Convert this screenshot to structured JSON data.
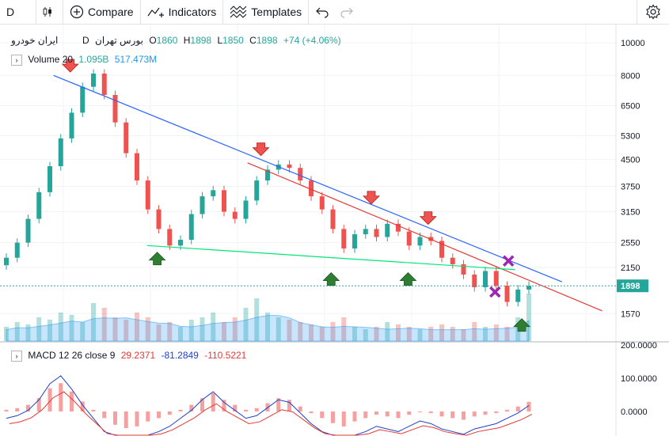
{
  "toolbar": {
    "interval": "D",
    "compare": "Compare",
    "indicators": "Indicators",
    "templates": "Templates"
  },
  "symbol": {
    "name": "ایران خودرو",
    "exchange": "بورس تهران",
    "interval": "D",
    "open_label": "O",
    "open": "1860",
    "high_label": "H",
    "high": "1898",
    "low_label": "L",
    "low": "1850",
    "close_label": "C",
    "close": "1898",
    "change": "+74 (+4.06%)"
  },
  "volume": {
    "label": "Volume 20",
    "value": "1.095B",
    "ma": "517.473M"
  },
  "macd": {
    "label": "MACD 12 26 close 9",
    "hist": "29.2371",
    "macd": "-81.2849",
    "signal": "-110.5221"
  },
  "colors": {
    "up": "#26a69a",
    "down": "#ef5350",
    "blue": "#2962ff",
    "red": "#e53935",
    "green": "#00e676",
    "purple": "#9c27b0",
    "grid": "#e0e3eb"
  },
  "chart_data": [
    {
      "type": "candlestick",
      "scale": "log",
      "y_ticks": [
        10000,
        8000,
        6500,
        5300,
        4500,
        3750,
        3150,
        2550,
        2150,
        1570
      ],
      "y_tick_labels": [
        "10000",
        "8000",
        "6500",
        "5300",
        "4500",
        "3750",
        "3150",
        "2550",
        "2150",
        "1570"
      ],
      "last_price": 1898,
      "last_price_label": "1898",
      "series": [
        {
          "values": [
            2300,
            2550,
            3000,
            3600,
            4300,
            5200,
            6200,
            7400,
            8100,
            7000,
            5800,
            4700,
            3900,
            3200,
            2800,
            2500,
            2600,
            3100,
            3500,
            3650,
            3150,
            3000,
            3400,
            3900,
            4200,
            4350,
            4250,
            3900,
            3500,
            3200,
            2800,
            2450,
            2700,
            2800,
            2650,
            2900,
            2750,
            2500,
            2650,
            2580,
            2300,
            2200,
            2050,
            1880,
            2100,
            1900,
            1700,
            1850,
            1898
          ]
        }
      ],
      "trendlines": [
        {
          "color": "blue",
          "from": [
            0.08,
            8000
          ],
          "to": [
            0.84,
            1950
          ]
        },
        {
          "color": "red",
          "from": [
            0.37,
            4400
          ],
          "to": [
            0.9,
            1600
          ]
        },
        {
          "color": "green",
          "from": [
            0.22,
            2500
          ],
          "to": [
            0.77,
            2120
          ]
        }
      ],
      "markers": [
        {
          "kind": "down-arrow",
          "x": 0.105,
          "value": 8500
        },
        {
          "kind": "down-arrow",
          "x": 0.39,
          "value": 4800
        },
        {
          "kind": "down-arrow",
          "x": 0.555,
          "value": 3450
        },
        {
          "kind": "down-arrow",
          "x": 0.64,
          "value": 3000
        },
        {
          "kind": "up-arrow",
          "x": 0.235,
          "value": 2300
        },
        {
          "kind": "up-arrow",
          "x": 0.495,
          "value": 2000
        },
        {
          "kind": "up-arrow",
          "x": 0.61,
          "value": 2000
        },
        {
          "kind": "up-arrow",
          "x": 0.78,
          "value": 1460
        },
        {
          "kind": "x-mark",
          "x": 0.76,
          "value": 2250
        },
        {
          "kind": "x-mark",
          "x": 0.74,
          "value": 1820
        }
      ]
    },
    {
      "type": "bar",
      "name": "Volume 20",
      "values": [
        0.3,
        0.4,
        0.35,
        0.5,
        0.45,
        0.6,
        0.55,
        0.4,
        0.8,
        0.7,
        0.5,
        0.45,
        0.6,
        0.5,
        0.35,
        0.4,
        0.3,
        0.45,
        0.5,
        0.6,
        0.4,
        0.5,
        0.7,
        0.9,
        0.6,
        0.5,
        0.45,
        0.4,
        0.35,
        0.3,
        0.4,
        0.5,
        0.3,
        0.25,
        0.3,
        0.4,
        0.35,
        0.3,
        0.25,
        0.3,
        0.35,
        0.3,
        0.25,
        0.4,
        0.3,
        0.35,
        0.3,
        0.5,
        1.0
      ]
    },
    {
      "type": "bar",
      "name": "MACD 12 26 close 9",
      "y_ticks": [
        200,
        100,
        0
      ],
      "y_tick_labels": [
        "200.0000",
        "100.0000",
        "0.0000"
      ],
      "histogram": [
        5,
        10,
        20,
        40,
        70,
        85,
        60,
        30,
        5,
        -20,
        -40,
        -50,
        -45,
        -30,
        -20,
        -10,
        5,
        20,
        40,
        55,
        35,
        20,
        5,
        10,
        25,
        40,
        35,
        15,
        -5,
        -20,
        -35,
        -45,
        -30,
        -20,
        -10,
        -15,
        -20,
        -10,
        0,
        -5,
        -15,
        -20,
        -25,
        -15,
        -10,
        -5,
        5,
        15,
        29
      ]
    }
  ]
}
